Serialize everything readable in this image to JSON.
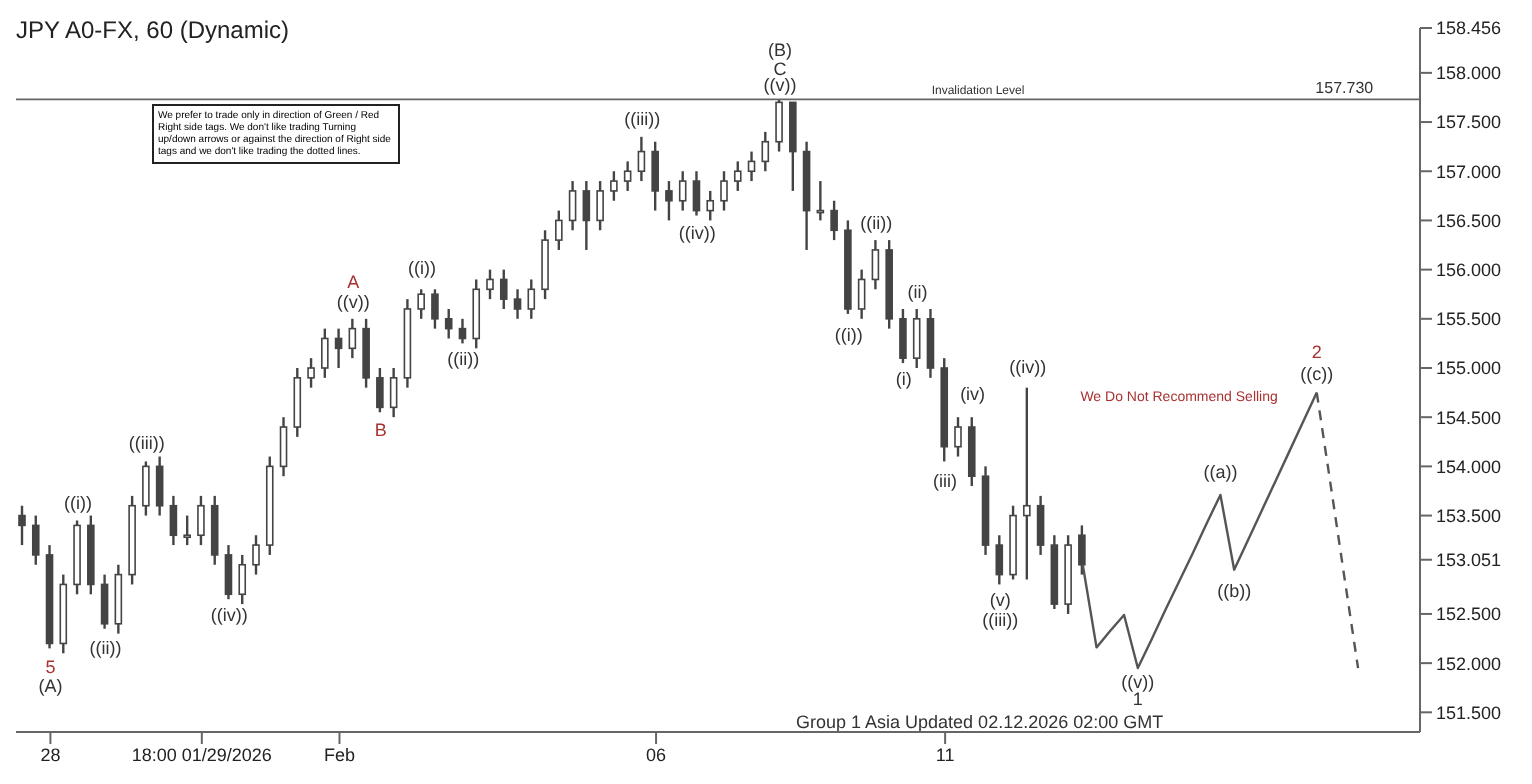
{
  "chart_data": {
    "type": "candlestick",
    "title": "JPY A0-FX, 60 (Dynamic)",
    "categories": [
      null,
      null,
      "28",
      null,
      null,
      null,
      null,
      null,
      null,
      null,
      null,
      null,
      null,
      "18:00 01/29/2026",
      null,
      null,
      null,
      null,
      null,
      null,
      null,
      null,
      null,
      "Feb",
      null,
      null,
      null,
      null,
      null,
      null,
      null,
      null,
      null,
      null,
      null,
      null,
      null,
      null,
      null,
      null,
      null,
      null,
      null,
      null,
      null,
      null,
      "06",
      null,
      null,
      null,
      null,
      null,
      null,
      null,
      null,
      null,
      null,
      null,
      null,
      null,
      null,
      null,
      null,
      null,
      null,
      null,
      null,
      "11",
      null,
      null,
      null,
      null,
      null,
      null,
      null,
      null,
      null,
      null,
      null,
      null,
      null,
      null,
      null,
      null,
      null,
      null,
      null,
      null,
      null,
      null,
      null,
      null,
      null,
      null,
      null,
      null,
      null,
      null,
      null,
      null,
      null,
      null
    ],
    "ohlc": [
      [
        153.5,
        153.6,
        153.2,
        153.4
      ],
      [
        153.4,
        153.5,
        153.0,
        153.1
      ],
      [
        153.1,
        153.2,
        152.15,
        152.2
      ],
      [
        152.2,
        152.9,
        152.1,
        152.8
      ],
      [
        152.8,
        153.45,
        152.7,
        153.4
      ],
      [
        153.4,
        153.5,
        152.7,
        152.8
      ],
      [
        152.8,
        152.9,
        152.35,
        152.4
      ],
      [
        152.4,
        153.0,
        152.3,
        152.9
      ],
      [
        152.9,
        153.7,
        152.8,
        153.6
      ],
      [
        153.6,
        154.05,
        153.5,
        154.0
      ],
      [
        154.0,
        154.1,
        153.5,
        153.6
      ],
      [
        153.6,
        153.7,
        153.2,
        153.3
      ],
      [
        153.3,
        153.5,
        153.2,
        153.3
      ],
      [
        153.3,
        153.7,
        153.2,
        153.6
      ],
      [
        153.6,
        153.7,
        153.0,
        153.1
      ],
      [
        153.1,
        153.2,
        152.65,
        152.7
      ],
      [
        152.7,
        153.1,
        152.6,
        153.0
      ],
      [
        153.0,
        153.3,
        152.9,
        153.2
      ],
      [
        153.2,
        154.1,
        153.1,
        154.0
      ],
      [
        154.0,
        154.5,
        153.9,
        154.4
      ],
      [
        154.4,
        155.0,
        154.3,
        154.9
      ],
      [
        154.9,
        155.1,
        154.8,
        155.0
      ],
      [
        155.0,
        155.4,
        154.9,
        155.3
      ],
      [
        155.3,
        155.4,
        155.0,
        155.2
      ],
      [
        155.2,
        155.5,
        155.1,
        155.4
      ],
      [
        155.4,
        155.5,
        154.8,
        154.9
      ],
      [
        154.9,
        155.0,
        154.55,
        154.6
      ],
      [
        154.6,
        155.0,
        154.5,
        154.9
      ],
      [
        154.9,
        155.7,
        154.8,
        155.6
      ],
      [
        155.6,
        155.8,
        155.5,
        155.75
      ],
      [
        155.75,
        155.8,
        155.4,
        155.5
      ],
      [
        155.5,
        155.6,
        155.3,
        155.4
      ],
      [
        155.4,
        155.5,
        155.25,
        155.3
      ],
      [
        155.3,
        155.9,
        155.2,
        155.8
      ],
      [
        155.8,
        156.0,
        155.7,
        155.9
      ],
      [
        155.9,
        156.0,
        155.6,
        155.7
      ],
      [
        155.7,
        155.8,
        155.5,
        155.6
      ],
      [
        155.6,
        155.9,
        155.5,
        155.8
      ],
      [
        155.8,
        156.4,
        155.7,
        156.3
      ],
      [
        156.3,
        156.6,
        156.2,
        156.5
      ],
      [
        156.5,
        156.9,
        156.4,
        156.8
      ],
      [
        156.8,
        156.9,
        156.2,
        156.5
      ],
      [
        156.5,
        156.9,
        156.4,
        156.8
      ],
      [
        156.8,
        157.0,
        156.7,
        156.9
      ],
      [
        156.9,
        157.1,
        156.8,
        157.0
      ],
      [
        157.0,
        157.35,
        156.9,
        157.2
      ],
      [
        157.2,
        157.3,
        156.6,
        156.8
      ],
      [
        156.8,
        156.9,
        156.5,
        156.7
      ],
      [
        156.7,
        157.0,
        156.6,
        156.9
      ],
      [
        156.9,
        157.0,
        156.55,
        156.6
      ],
      [
        156.6,
        156.8,
        156.5,
        156.7
      ],
      [
        156.7,
        157.0,
        156.6,
        156.9
      ],
      [
        156.9,
        157.1,
        156.8,
        157.0
      ],
      [
        157.0,
        157.2,
        156.9,
        157.1
      ],
      [
        157.1,
        157.4,
        157.0,
        157.3
      ],
      [
        157.3,
        157.73,
        157.2,
        157.7
      ],
      [
        157.7,
        157.7,
        156.8,
        157.2
      ],
      [
        157.2,
        157.3,
        156.2,
        156.6
      ],
      [
        156.6,
        156.9,
        156.5,
        156.6
      ],
      [
        156.6,
        156.7,
        156.3,
        156.4
      ],
      [
        156.4,
        156.5,
        155.55,
        155.6
      ],
      [
        155.6,
        156.0,
        155.5,
        155.9
      ],
      [
        155.9,
        156.3,
        155.8,
        156.2
      ],
      [
        156.2,
        156.3,
        155.4,
        155.5
      ],
      [
        155.5,
        155.6,
        155.05,
        155.1
      ],
      [
        155.1,
        155.6,
        155.0,
        155.5
      ],
      [
        155.5,
        155.6,
        154.9,
        155.0
      ],
      [
        155.0,
        155.1,
        154.05,
        154.2
      ],
      [
        154.2,
        154.5,
        154.1,
        154.4
      ],
      [
        154.4,
        154.5,
        153.8,
        153.9
      ],
      [
        153.9,
        154.0,
        153.1,
        153.2
      ],
      [
        153.2,
        153.3,
        152.8,
        152.9
      ],
      [
        152.9,
        153.6,
        152.85,
        153.5
      ],
      [
        153.5,
        154.8,
        152.85,
        153.6
      ],
      [
        153.6,
        153.7,
        153.1,
        153.2
      ],
      [
        153.2,
        153.3,
        152.55,
        152.6
      ],
      [
        152.6,
        153.3,
        152.5,
        153.2
      ],
      [
        153.3,
        153.4,
        152.9,
        153.0
      ],
      null,
      null,
      null,
      null,
      null,
      null,
      null,
      null,
      null,
      null,
      null,
      null,
      null,
      null,
      null,
      null,
      null,
      null,
      null,
      null,
      null,
      null,
      null,
      null
    ],
    "color": "#444444",
    "series": [
      {
        "type": "line",
        "color": "#555555",
        "line_style": "solid",
        "values": [
          null,
          null,
          null,
          null,
          null,
          null,
          null,
          null,
          null,
          null,
          null,
          null,
          null,
          null,
          null,
          null,
          null,
          null,
          null,
          null,
          null,
          null,
          null,
          null,
          null,
          null,
          null,
          null,
          null,
          null,
          null,
          null,
          null,
          null,
          null,
          null,
          null,
          null,
          null,
          null,
          null,
          null,
          null,
          null,
          null,
          null,
          null,
          null,
          null,
          null,
          null,
          null,
          null,
          null,
          null,
          null,
          null,
          null,
          null,
          null,
          null,
          null,
          null,
          null,
          null,
          null,
          null,
          null,
          null,
          null,
          null,
          null,
          null,
          null,
          null,
          null,
          null,
          153.0,
          152.16,
          152.33,
          152.49,
          151.95,
          152.24,
          152.54,
          152.83,
          153.12,
          153.42,
          153.71,
          152.95,
          153.25,
          153.55,
          153.85,
          154.15,
          154.45,
          154.75,
          null,
          null,
          null,
          null,
          null,
          null,
          null
        ]
      },
      {
        "type": "line",
        "color": "#555555",
        "line_style": "dashed",
        "values": [
          null,
          null,
          null,
          null,
          null,
          null,
          null,
          null,
          null,
          null,
          null,
          null,
          null,
          null,
          null,
          null,
          null,
          null,
          null,
          null,
          null,
          null,
          null,
          null,
          null,
          null,
          null,
          null,
          null,
          null,
          null,
          null,
          null,
          null,
          null,
          null,
          null,
          null,
          null,
          null,
          null,
          null,
          null,
          null,
          null,
          null,
          null,
          null,
          null,
          null,
          null,
          null,
          null,
          null,
          null,
          null,
          null,
          null,
          null,
          null,
          null,
          null,
          null,
          null,
          null,
          null,
          null,
          null,
          null,
          null,
          null,
          null,
          null,
          null,
          null,
          null,
          null,
          null,
          null,
          null,
          null,
          null,
          null,
          null,
          null,
          null,
          null,
          null,
          null,
          null,
          null,
          null,
          null,
          null,
          154.75,
          153.82,
          152.88,
          151.95,
          null,
          null,
          null,
          null
        ]
      }
    ],
    "ylim": [
      151.3,
      158.456
    ],
    "yticks": [
      {
        "value": 151.5,
        "label": "151.500"
      },
      {
        "value": 152,
        "label": "152.000"
      },
      {
        "value": 152.5,
        "label": "152.500"
      },
      {
        "value": 153.051,
        "label": "153.051"
      },
      {
        "value": 153.5,
        "label": "153.500"
      },
      {
        "value": 154,
        "label": "154.000"
      },
      {
        "value": 154.5,
        "label": "154.500"
      },
      {
        "value": 155,
        "label": "155.000"
      },
      {
        "value": 155.5,
        "label": "155.500"
      },
      {
        "value": 156,
        "label": "156.000"
      },
      {
        "value": 156.5,
        "label": "156.500"
      },
      {
        "value": 157,
        "label": "157.000"
      },
      {
        "value": 157.5,
        "label": "157.500"
      },
      {
        "value": 158,
        "label": "158.000"
      },
      {
        "value": 158.456,
        "label": "158.456"
      }
    ],
    "ref_lines": [
      {
        "axis": "y",
        "value": 157.73,
        "label": "Invalidation Level",
        "color": "#666666"
      }
    ],
    "marker": "none",
    "annotations": [
      "We prefer to trade only in direction of Green / Red Right side tags. We don't like trading Turning up/down arrows or against the direction of Right side tags and we don't like trading the dotted lines.",
      "Group 1 Asia Updated 02.12.2026 02:00 GMT",
      "157.730",
      "5",
      "(A)",
      "((i))",
      "((ii))",
      "((iii))",
      "((iv))",
      "A",
      "((v))",
      "B",
      "((i))",
      "((ii))",
      "((iii))",
      "((iv))",
      "(B)",
      "C",
      "((v))",
      "((i))",
      "((ii))",
      "(ii)",
      "(i)",
      "(iv)",
      "(iii)",
      "((iv))",
      "(v)",
      "((iii))",
      "We Do Not Recommend Selling",
      "((v))",
      "1",
      "((a))",
      "((b))",
      "2",
      "((c))"
    ]
  }
}
